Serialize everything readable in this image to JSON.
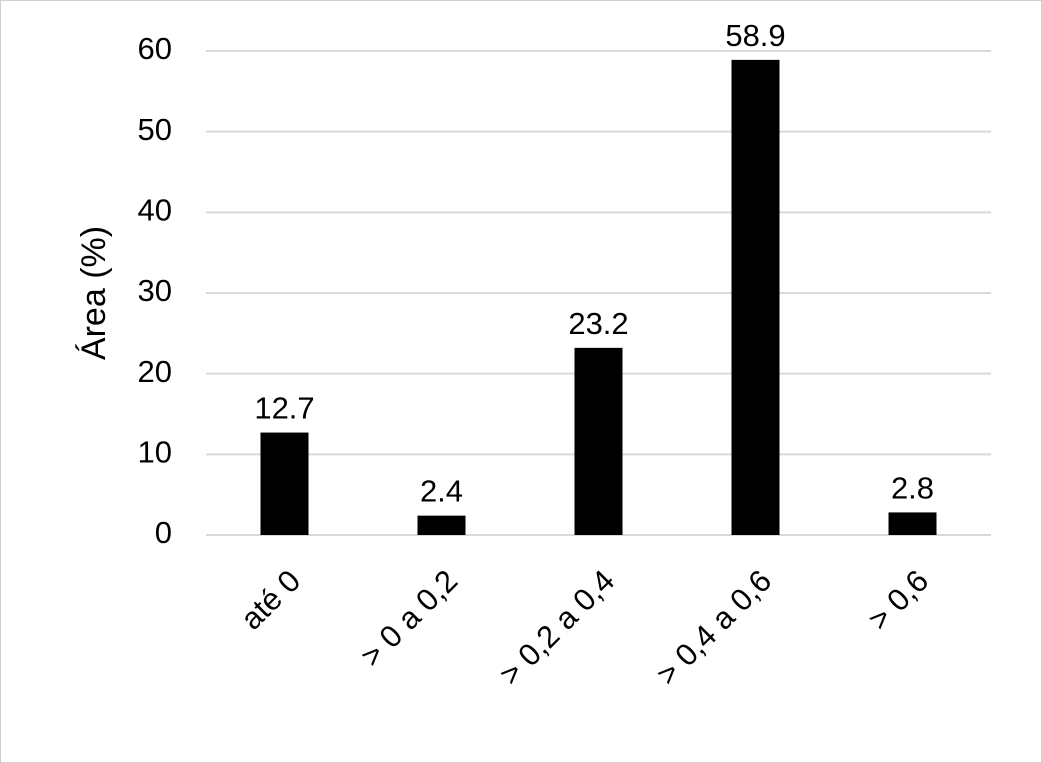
{
  "chart_data": {
    "type": "bar",
    "ylabel": "Área (%)",
    "categories": [
      "até 0",
      "> 0 a 0,2",
      "> 0,2 a 0,4",
      "> 0,4 a 0,6",
      "> 0,6"
    ],
    "values": [
      12.7,
      2.4,
      23.2,
      58.9,
      2.8
    ],
    "color": "#000000",
    "ylim": [
      0,
      60
    ],
    "yticks": [
      0,
      10,
      20,
      30,
      40,
      50,
      60
    ],
    "grid": true
  }
}
